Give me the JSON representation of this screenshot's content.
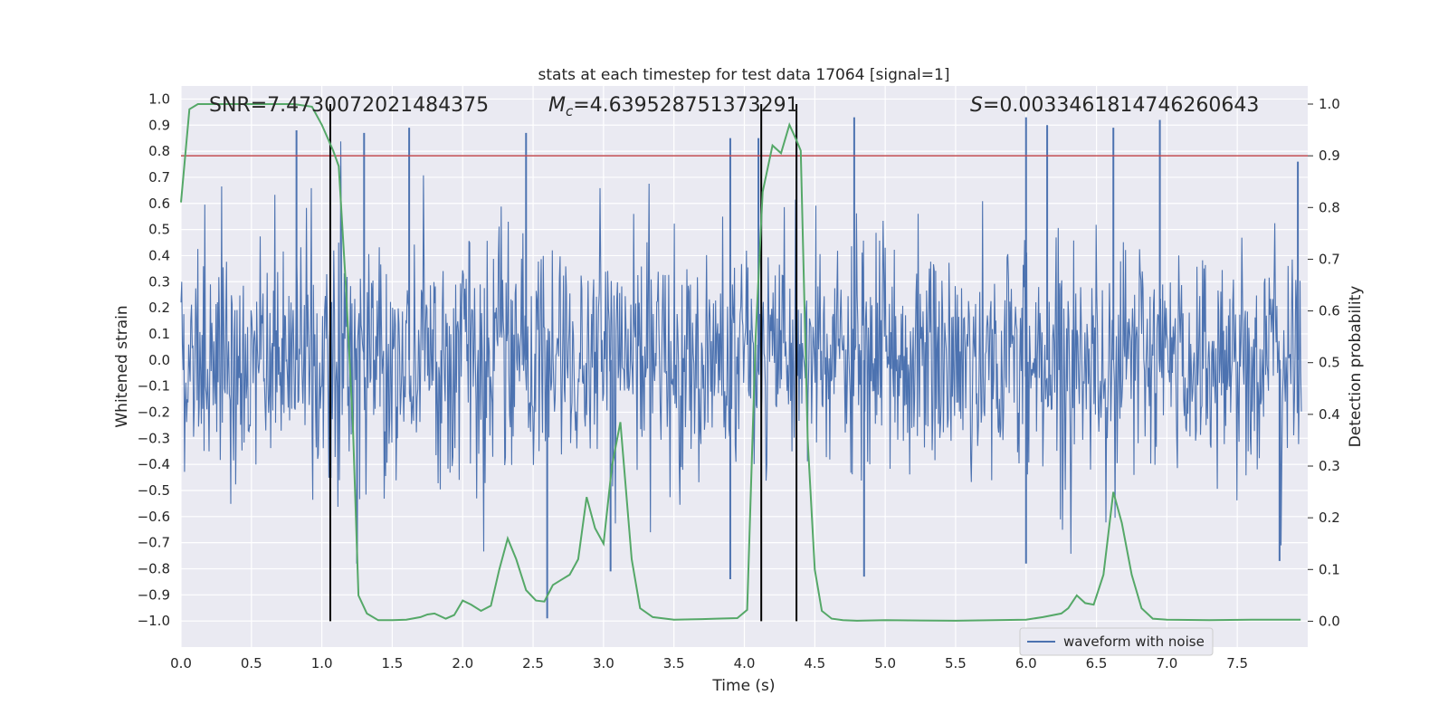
{
  "chart_data": {
    "type": "line",
    "title": "stats at each timestep for test data 17064 [signal=1]",
    "xlabel": "Time (s)",
    "ylabel": "Whitened strain",
    "ylabel_right": "Detection probability",
    "xlim": [
      0.0,
      8.0
    ],
    "ylim": [
      -1.1,
      1.05
    ],
    "ylim_right": [
      -0.05,
      1.035
    ],
    "xticks": [
      "0.0",
      "0.5",
      "1.0",
      "1.5",
      "2.0",
      "2.5",
      "3.0",
      "3.5",
      "4.0",
      "4.5",
      "5.0",
      "5.5",
      "6.0",
      "6.5",
      "7.0",
      "7.5"
    ],
    "yticks": [
      "1.0",
      "0.9",
      "0.8",
      "0.7",
      "0.6",
      "0.5",
      "0.4",
      "0.3",
      "0.2",
      "0.1",
      "0.0",
      "−0.1",
      "−0.2",
      "−0.3",
      "−0.4",
      "−0.5",
      "−0.6",
      "−0.7",
      "−0.8",
      "−0.9",
      "−1.0"
    ],
    "yticks_right": [
      "1.0",
      "0.9",
      "0.8",
      "0.7",
      "0.6",
      "0.5",
      "0.4",
      "0.3",
      "0.2",
      "0.1",
      "0.0"
    ],
    "annotations": {
      "snr_label": "SNR=7.4730072021484375",
      "mc_symbol": "M",
      "mc_sub": "c",
      "mc_value": "=4.639528751373291",
      "s_symbol": "S",
      "s_value": "=0.0033461814746260643"
    },
    "legend": {
      "label": "waveform with noise",
      "position": "lower-right"
    },
    "threshold_right": 0.9,
    "vlines_x": [
      1.06,
      4.12,
      4.37
    ],
    "series": [
      {
        "name": "waveform with noise",
        "color": "#4c72b0",
        "noise_sigma": 0.22,
        "samples": 1600,
        "spikes": [
          {
            "x": 0.82,
            "y": 0.88
          },
          {
            "x": 1.3,
            "y": 0.87
          },
          {
            "x": 1.62,
            "y": 0.89
          },
          {
            "x": 2.45,
            "y": 0.87
          },
          {
            "x": 3.9,
            "y": 0.85
          },
          {
            "x": 4.1,
            "y": 0.85
          },
          {
            "x": 4.37,
            "y": 0.9
          },
          {
            "x": 4.78,
            "y": 0.93
          },
          {
            "x": 6.0,
            "y": 0.93
          },
          {
            "x": 6.15,
            "y": 0.9
          },
          {
            "x": 6.62,
            "y": 0.89
          },
          {
            "x": 6.95,
            "y": 0.92
          },
          {
            "x": 7.93,
            "y": 0.76
          },
          {
            "x": 2.6,
            "y": -0.99
          },
          {
            "x": 1.25,
            "y": -0.78
          },
          {
            "x": 3.05,
            "y": -0.81
          },
          {
            "x": 3.9,
            "y": -0.84
          },
          {
            "x": 4.85,
            "y": -0.83
          },
          {
            "x": 6.0,
            "y": -0.78
          },
          {
            "x": 7.8,
            "y": -0.77
          }
        ]
      },
      {
        "name": "detection probability",
        "color": "#55a868",
        "axis": "right",
        "x": [
          0.0,
          0.06,
          0.12,
          0.2,
          0.4,
          0.6,
          0.8,
          0.93,
          1.0,
          1.08,
          1.12,
          1.17,
          1.22,
          1.26,
          1.32,
          1.4,
          1.5,
          1.6,
          1.7,
          1.75,
          1.8,
          1.88,
          1.94,
          2.0,
          2.06,
          2.13,
          2.2,
          2.26,
          2.32,
          2.38,
          2.45,
          2.52,
          2.58,
          2.64,
          2.7,
          2.76,
          2.82,
          2.88,
          2.94,
          3.0,
          3.06,
          3.12,
          3.2,
          3.26,
          3.35,
          3.5,
          3.7,
          3.8,
          3.95,
          4.02,
          4.08,
          4.13,
          4.2,
          4.26,
          4.32,
          4.37,
          4.4,
          4.45,
          4.5,
          4.55,
          4.62,
          4.7,
          4.8,
          5.0,
          5.5,
          6.0,
          6.12,
          6.25,
          6.3,
          6.36,
          6.42,
          6.48,
          6.55,
          6.62,
          6.68,
          6.75,
          6.82,
          6.9,
          7.0,
          7.3,
          7.6,
          7.95
        ],
        "y": [
          0.81,
          0.99,
          1.0,
          1.0,
          1.0,
          1.0,
          1.0,
          0.995,
          0.96,
          0.91,
          0.88,
          0.65,
          0.38,
          0.05,
          0.015,
          0.002,
          0.002,
          0.003,
          0.008,
          0.013,
          0.015,
          0.005,
          0.012,
          0.04,
          0.032,
          0.02,
          0.03,
          0.1,
          0.16,
          0.12,
          0.06,
          0.04,
          0.038,
          0.07,
          0.08,
          0.09,
          0.12,
          0.24,
          0.18,
          0.15,
          0.3,
          0.385,
          0.12,
          0.025,
          0.008,
          0.003,
          0.004,
          0.005,
          0.006,
          0.022,
          0.55,
          0.83,
          0.92,
          0.905,
          0.96,
          0.93,
          0.91,
          0.35,
          0.1,
          0.02,
          0.005,
          0.002,
          0.001,
          0.002,
          0.001,
          0.003,
          0.008,
          0.015,
          0.025,
          0.05,
          0.035,
          0.032,
          0.09,
          0.25,
          0.19,
          0.09,
          0.025,
          0.005,
          0.003,
          0.002,
          0.003,
          0.003
        ]
      }
    ],
    "colors": {
      "background": "#eaeaf2",
      "grid": "#ffffff",
      "threshold": "#c44e52",
      "vline": "#000000"
    }
  }
}
